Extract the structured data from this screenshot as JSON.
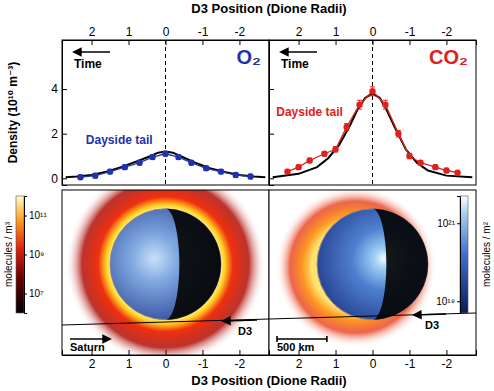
{
  "chart_data": [
    {
      "type": "line",
      "title": "O₂",
      "xlabel": "D3 Position (Dione Radii)",
      "ylabel": "Density (10¹⁰ m⁻³)",
      "xlim": [
        2.8,
        -2.8
      ],
      "xticks": [
        2,
        1,
        0,
        -1,
        -2
      ],
      "ylim": [
        -0.3,
        6.2
      ],
      "yticks": [
        0,
        2,
        4
      ],
      "reference_x": 0,
      "annotations": [
        "Time",
        "Dayside tail"
      ],
      "series": [
        {
          "color": "#000000",
          "line_style": "solid",
          "x": [
            2.7,
            2.4,
            2.0,
            1.6,
            1.2,
            0.8,
            0.4,
            0.2,
            0,
            -0.2,
            -0.4,
            -0.8,
            -1.2,
            -1.6,
            -2.0,
            -2.4,
            -2.7
          ],
          "values": [
            0.05,
            0.08,
            0.15,
            0.3,
            0.5,
            0.75,
            1.0,
            1.15,
            1.2,
            1.15,
            1.0,
            0.7,
            0.45,
            0.28,
            0.15,
            0.08,
            0.05
          ]
        },
        {
          "color": "#2233aa",
          "line_style": "solid",
          "marker": "circle",
          "x": [
            2.3,
            1.9,
            1.5,
            1.1,
            0.7,
            0.35,
            0,
            -0.35,
            -0.7,
            -1.1,
            -1.5,
            -1.9,
            -2.3
          ],
          "values": [
            0.05,
            0.12,
            0.3,
            0.5,
            0.7,
            0.95,
            1.1,
            0.95,
            0.7,
            0.45,
            0.3,
            0.15,
            0.08
          ],
          "errors": [
            0.1,
            0.1,
            0.1,
            0.1,
            0.1,
            0.1,
            0.1,
            0.1,
            0.1,
            0.1,
            0.1,
            0.1,
            0.1
          ]
        }
      ]
    },
    {
      "type": "line",
      "title": "CO₂",
      "xlim": [
        2.8,
        -2.8
      ],
      "xticks": [
        2,
        1,
        0,
        -1,
        -2
      ],
      "ylim": [
        -0.3,
        6.2
      ],
      "yticks": [
        0,
        2,
        4
      ],
      "tick_labels": "x",
      "reference_x": 0,
      "annotations": [
        "Time",
        "Dayside tail"
      ],
      "series": [
        {
          "color": "#000000",
          "line_style": "solid",
          "x": [
            2.7,
            2.0,
            1.5,
            1.2,
            0.9,
            0.6,
            0.4,
            0.2,
            0,
            -0.2,
            -0.4,
            -0.6,
            -0.9,
            -1.2,
            -1.5,
            -2.0,
            -2.7
          ],
          "values": [
            0.05,
            0.2,
            0.5,
            0.9,
            1.5,
            2.4,
            3.1,
            3.6,
            3.8,
            3.6,
            3.0,
            2.3,
            1.3,
            0.7,
            0.35,
            0.12,
            0.05
          ]
        },
        {
          "color": "#e0201c",
          "line_style": "solid",
          "marker": "circle",
          "x": [
            2.3,
            2.0,
            1.7,
            1.3,
            1.0,
            0.7,
            0.35,
            0,
            -0.35,
            -0.7,
            -1.0,
            -1.3,
            -1.7,
            -2.0,
            -2.3
          ],
          "values": [
            0.3,
            0.5,
            0.8,
            1.1,
            1.3,
            2.3,
            3.3,
            3.9,
            3.3,
            2.0,
            1.0,
            0.7,
            0.5,
            0.35,
            0.25
          ],
          "errors": [
            0.1,
            0.1,
            0.1,
            0.1,
            0.12,
            0.15,
            0.2,
            0.2,
            0.2,
            0.15,
            0.12,
            0.1,
            0.1,
            0.1,
            0.1
          ]
        }
      ]
    },
    {
      "type": "image",
      "xlabel": "D3 Position (Dione Radii)",
      "xlim": [
        2.8,
        -2.8
      ],
      "xticks": [
        2,
        1,
        0,
        -1,
        -2
      ],
      "tick_labels": "x",
      "colorbar_label": "molecules / m³",
      "log": true,
      "colorbar_range": [
        1000000.0,
        1000000000000.0
      ],
      "colorbar_ticks": [
        {
          "value": 10000000.0,
          "label": "10⁷"
        },
        {
          "value": 1000000000.0,
          "label": "10⁹"
        },
        {
          "value": 100000000000.0,
          "label": "10¹¹"
        }
      ],
      "annotations": [
        "Saturn",
        "D3"
      ]
    },
    {
      "type": "image",
      "xlim": [
        2.8,
        -2.8
      ],
      "xticks": [
        2,
        1,
        0,
        -1,
        -2
      ],
      "tick_labels": "x",
      "colorbar_label": "molecules / m²",
      "log": true,
      "colorbar_range": [
        5e+18,
        5e+21
      ],
      "colorbar_ticks": [
        {
          "value": 1e+19,
          "label": "10¹⁹"
        },
        {
          "value": 1e+21,
          "label": "10²¹"
        }
      ],
      "annotations": [
        "500 km",
        "D3"
      ]
    }
  ]
}
